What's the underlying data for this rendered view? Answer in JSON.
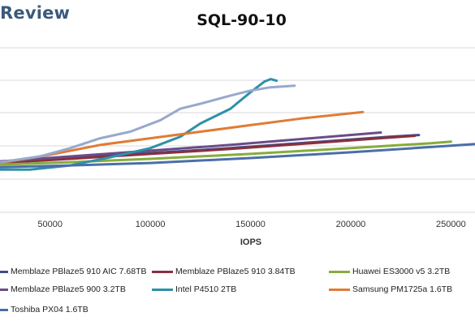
{
  "brand": "Review",
  "chart_data": {
    "type": "line",
    "title": "SQL-90-10",
    "xlabel": "IOPS",
    "ylabel": "",
    "x_ticks": [
      50000,
      100000,
      150000,
      200000,
      250000
    ],
    "x_tick_labels": [
      "50000",
      "100000",
      "150000",
      "200000",
      "250000"
    ],
    "xlim": [
      25000,
      262000
    ],
    "ylim": [
      0,
      10
    ],
    "grid": true,
    "legend_position": "bottom",
    "series": [
      {
        "name": "Memblaze PBlaze5 910 AIC 7.68TB",
        "color": "#3c4f8a",
        "x": [
          25000,
          60000,
          100000,
          140000,
          180000,
          220000,
          234000
        ],
        "y": [
          3.05,
          3.3,
          3.6,
          3.9,
          4.25,
          4.6,
          4.7
        ]
      },
      {
        "name": "Memblaze PBlaze5 910 3.84TB",
        "color": "#8b2f3e",
        "x": [
          25000,
          60000,
          100000,
          140000,
          180000,
          220000,
          232000
        ],
        "y": [
          3.0,
          3.25,
          3.55,
          3.85,
          4.2,
          4.55,
          4.65
        ]
      },
      {
        "name": "Huawei ES3000 v5 3.2TB",
        "color": "#86ac3c",
        "x": [
          25000,
          60000,
          100000,
          150000,
          200000,
          240000,
          250000
        ],
        "y": [
          2.9,
          3.05,
          3.25,
          3.55,
          3.9,
          4.2,
          4.3
        ]
      },
      {
        "name": "Memblaze PBlaze5 900 3.2TB",
        "color": "#6a4c8a",
        "x": [
          25000,
          60000,
          100000,
          140000,
          180000,
          215000
        ],
        "y": [
          3.1,
          3.4,
          3.75,
          4.1,
          4.5,
          4.85
        ]
      },
      {
        "name": "Intel P4510 2TB",
        "color": "#2e90a8",
        "x": [
          25000,
          40000,
          60000,
          80000,
          100000,
          115000,
          125000,
          140000,
          150000,
          157000,
          160000,
          163000
        ],
        "y": [
          2.6,
          2.6,
          2.85,
          3.35,
          3.9,
          4.6,
          5.4,
          6.3,
          7.3,
          7.95,
          8.1,
          8.0
        ]
      },
      {
        "name": "Samsung PM1725a 1.6TB",
        "color": "#e07b35",
        "x": [
          25000,
          50000,
          75000,
          100000,
          125000,
          150000,
          175000,
          206000
        ],
        "y": [
          3.0,
          3.5,
          4.1,
          4.5,
          4.9,
          5.3,
          5.7,
          6.1
        ]
      },
      {
        "name": "Toshiba PX04 1.6TB",
        "color": "#4a6fa8",
        "x": [
          25000,
          60000,
          100000,
          150000,
          200000,
          250000,
          262000
        ],
        "y": [
          2.75,
          2.85,
          3.0,
          3.3,
          3.65,
          4.05,
          4.15
        ]
      },
      {
        "name": "",
        "color": "#97a9cc",
        "x": [
          25000,
          45000,
          60000,
          75000,
          90000,
          105000,
          115000,
          125000,
          140000,
          150000,
          160000,
          172000
        ],
        "y": [
          3.05,
          3.4,
          3.9,
          4.5,
          4.9,
          5.6,
          6.3,
          6.6,
          7.1,
          7.4,
          7.6,
          7.7
        ]
      }
    ],
    "legend_entries": [
      {
        "label": "Memblaze PBlaze5 910 AIC 7.68TB",
        "color": "#3c4f8a"
      },
      {
        "label": "Memblaze PBlaze5 910 3.84TB",
        "color": "#8b2f3e"
      },
      {
        "label": "Huawei ES3000 v5 3.2TB",
        "color": "#86ac3c"
      },
      {
        "label": "Memblaze PBlaze5 900 3.2TB",
        "color": "#6a4c8a"
      },
      {
        "label": "Intel P4510 2TB",
        "color": "#2e90a8"
      },
      {
        "label": "Samsung PM1725a 1.6TB",
        "color": "#e07b35"
      },
      {
        "label": "Toshiba PX04 1.6TB",
        "color": "#4a6fa8"
      }
    ]
  }
}
